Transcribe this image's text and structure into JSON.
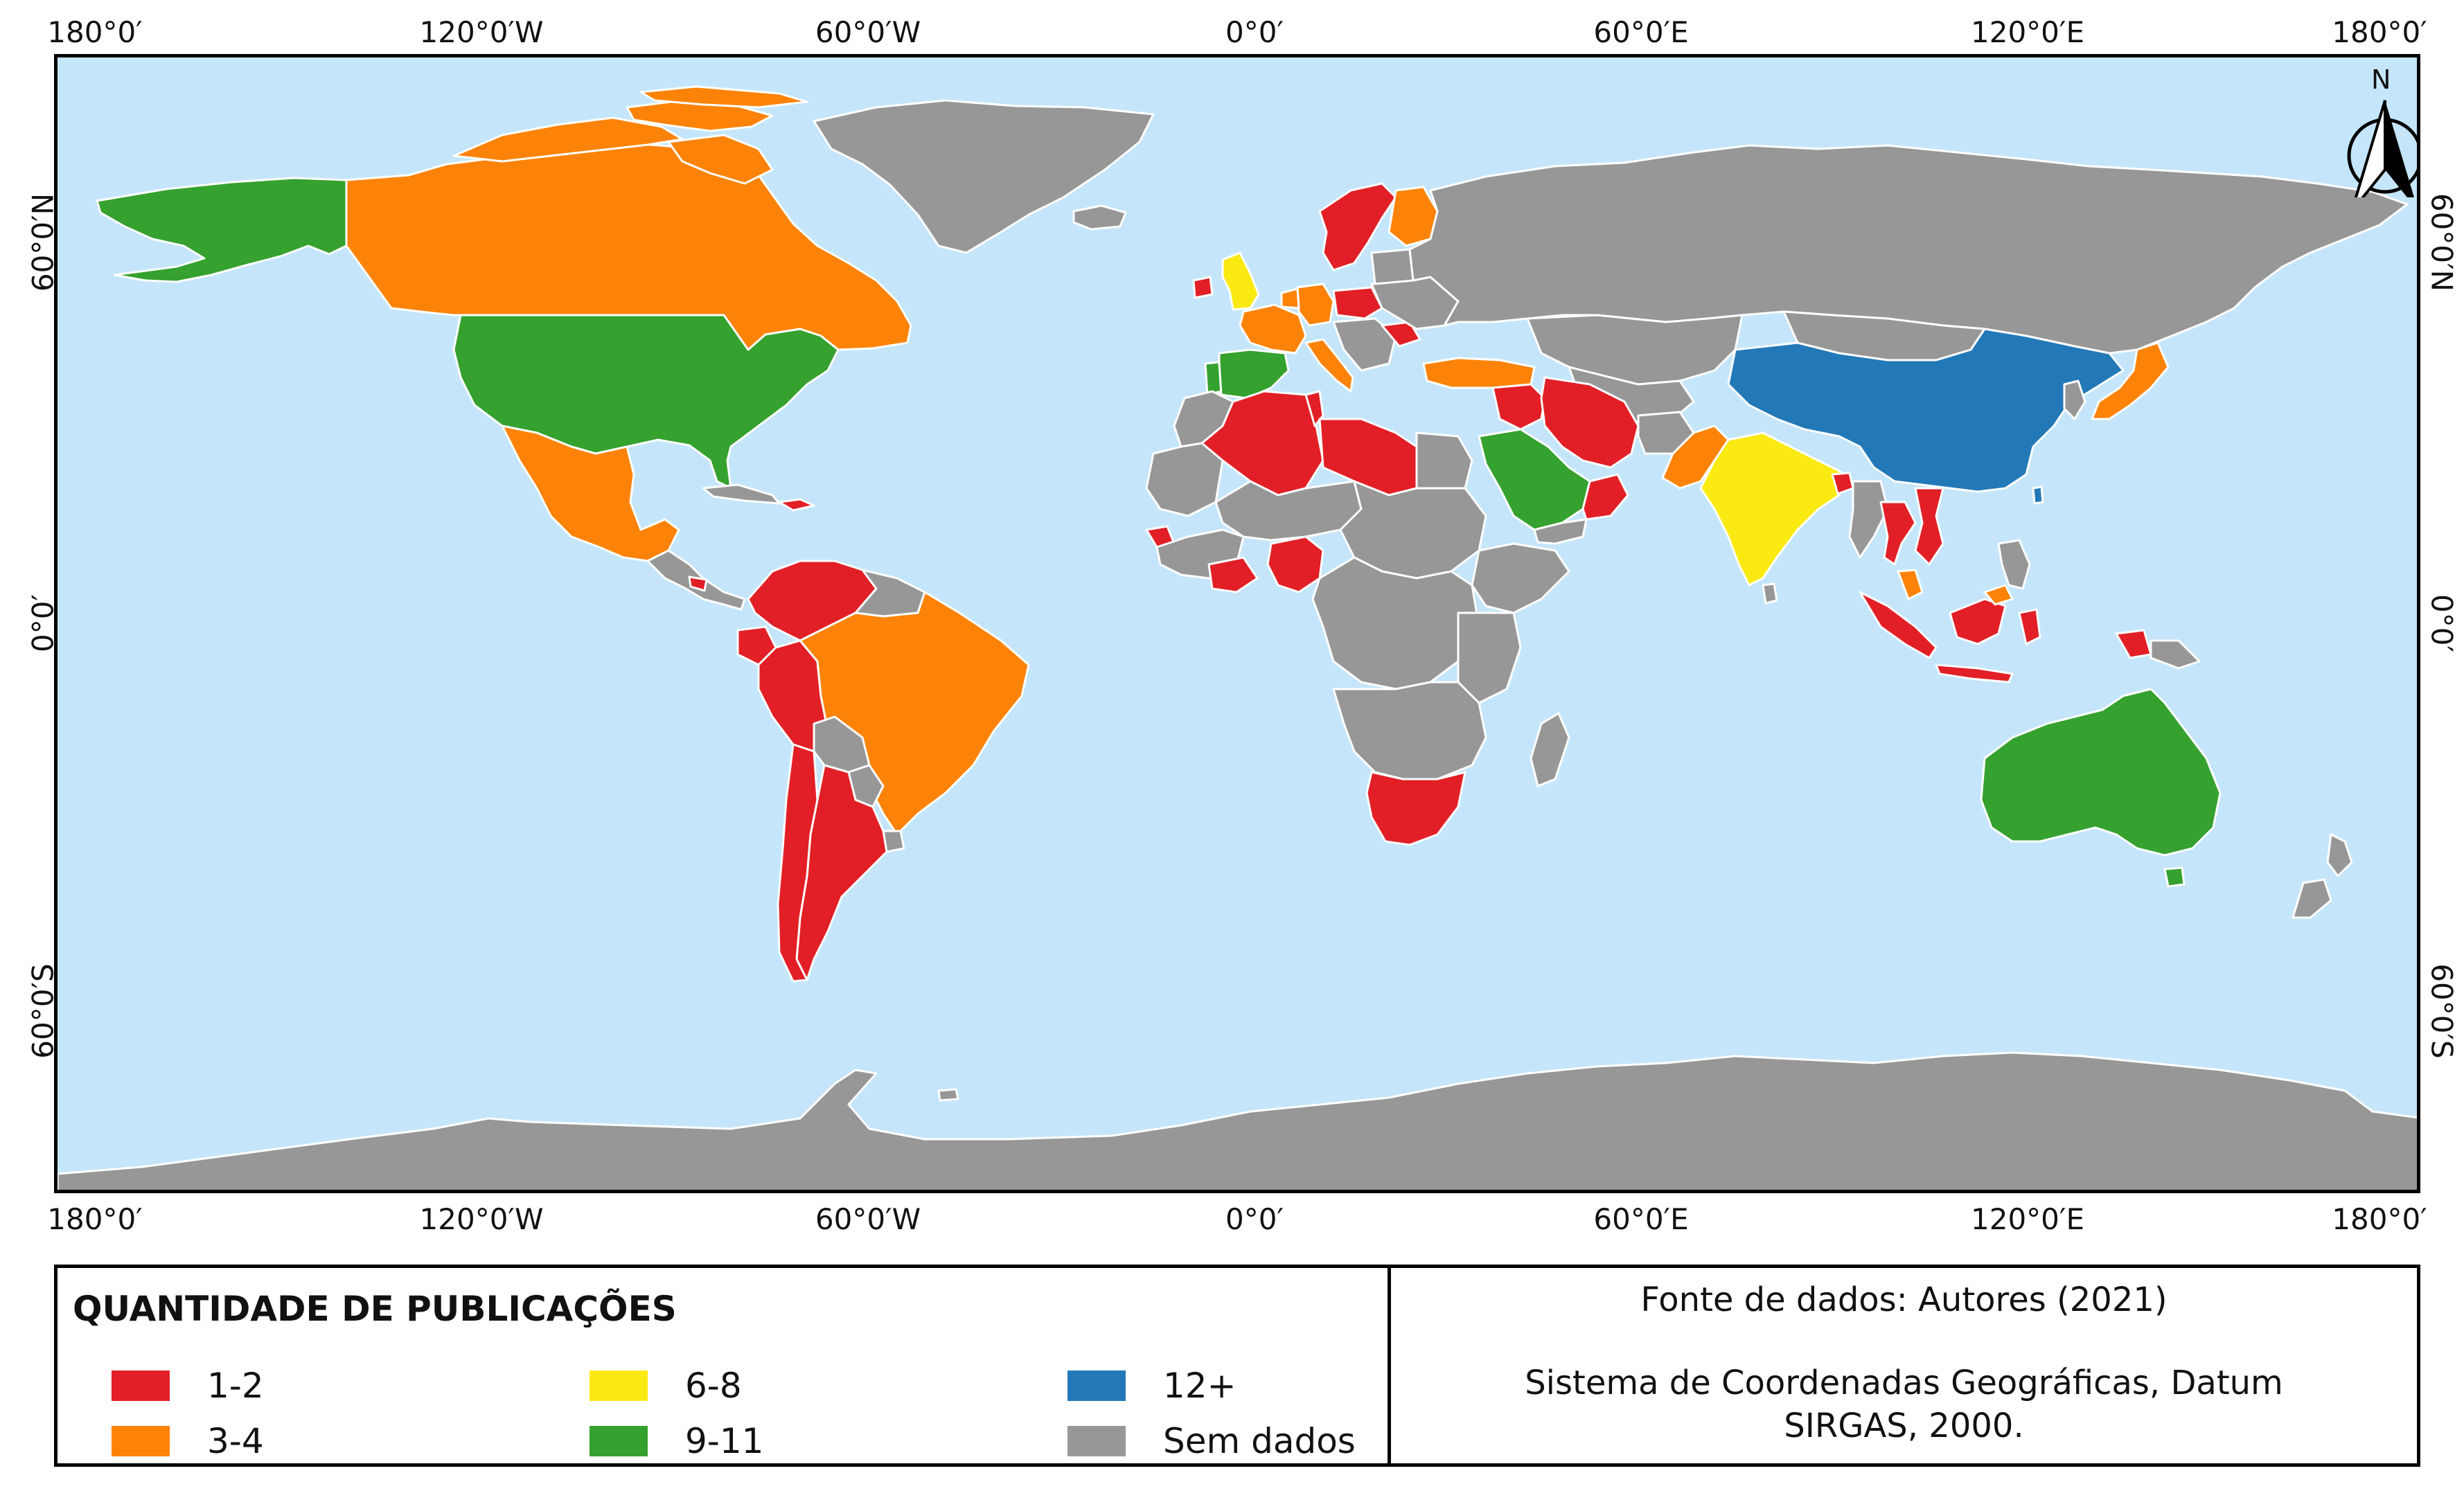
{
  "map": {
    "lon_ticks": [
      "180°0′",
      "120°0′W",
      "60°0′W",
      "0°0′",
      "60°0′E",
      "120°0′E",
      "180°0′"
    ],
    "lat_ticks": [
      "60°0′N",
      "0°0′",
      "60°0′S"
    ],
    "north_label": "N",
    "colors": {
      "ocean": "#c5e6fa",
      "border": "#ffffff",
      "c1_2": "#e21f26",
      "c3_4": "#fc8308",
      "c6_8": "#fbea12",
      "c9_11": "#35a12e",
      "c12": "#2379b8",
      "nodata": "#979797"
    }
  },
  "legend": {
    "title": "QUANTIDADE DE PUBLICAÇÕES",
    "items": [
      {
        "label": "1-2",
        "color": "#e21f26"
      },
      {
        "label": "3-4",
        "color": "#fc8308"
      },
      {
        "label": "6-8",
        "color": "#fbea12"
      },
      {
        "label": "9-11",
        "color": "#35a12e"
      },
      {
        "label": "12+",
        "color": "#2379b8"
      },
      {
        "label": "Sem dados",
        "color": "#979797"
      }
    ]
  },
  "info": {
    "source": "Fonte de dados: Autores (2021)",
    "crs_line1": "Sistema de Coordenadas Geográficas, Datum",
    "crs_line2": "SIRGAS, 2000."
  }
}
